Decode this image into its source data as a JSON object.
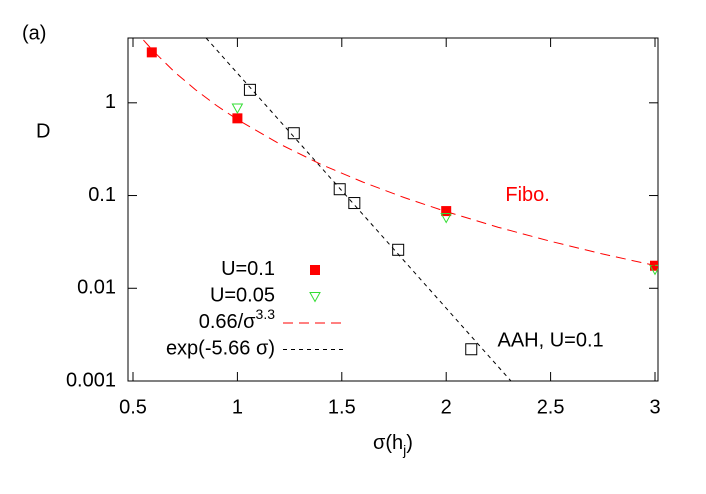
{
  "chart_data": {
    "type": "scatter",
    "panel_label": "(a)",
    "y_label": "D",
    "x_label": {
      "text": "σ(h",
      "sub": "j",
      "tail": ")"
    },
    "log_y": true,
    "xlim": [
      0.5,
      3
    ],
    "ylim": [
      0.001,
      5
    ],
    "xticks": [
      0.5,
      1,
      1.5,
      2,
      2.5,
      3
    ],
    "yticks": [
      1,
      0.1,
      0.01,
      0.001
    ],
    "annotations": [
      {
        "text": "Fibo.",
        "x": 2.39,
        "y": 0.1,
        "color": "#ff0000"
      },
      {
        "text": "AAH, U=0.1",
        "x": 2.5,
        "y": 0.0027,
        "color": "#000000"
      }
    ],
    "series": [
      {
        "name": "U=0.1",
        "kind": "filled-square",
        "color": "#ff0000",
        "x": [
          0.59,
          1.0,
          2.0,
          3.0
        ],
        "values": [
          3.5,
          0.68,
          0.068,
          0.0175
        ]
      },
      {
        "name": "U=0.05",
        "kind": "open-triangle",
        "color": "#33dd33",
        "x": [
          1.0,
          2.0,
          3.0
        ],
        "values": [
          0.88,
          0.058,
          0.016
        ]
      },
      {
        "name": "0.66/σ",
        "name_sup": "3.3",
        "kind": "dashed-line",
        "color": "#ff0000",
        "x": [
          0.55,
          0.6,
          0.7,
          0.8,
          0.9,
          1.0,
          1.2,
          1.4,
          1.6,
          1.8,
          2.0,
          2.25,
          2.5,
          2.75,
          3.0
        ],
        "values": [
          4.75,
          3.56,
          2.14,
          1.38,
          0.935,
          0.66,
          0.362,
          0.217,
          0.14,
          0.0949,
          0.0671,
          0.0454,
          0.0321,
          0.0234,
          0.0176
        ]
      },
      {
        "name": "exp(-5.66 σ)",
        "kind": "dashed-line",
        "color": "#000000",
        "x": [
          0.85,
          2.31
        ],
        "values": [
          5,
          0.001
        ]
      },
      {
        "kind": "open-square",
        "color": "#000000",
        "x": [
          1.06,
          1.27,
          1.49,
          1.56,
          1.77,
          2.12
        ],
        "values": [
          1.38,
          0.47,
          0.117,
          0.083,
          0.026,
          0.0022
        ]
      }
    ]
  }
}
